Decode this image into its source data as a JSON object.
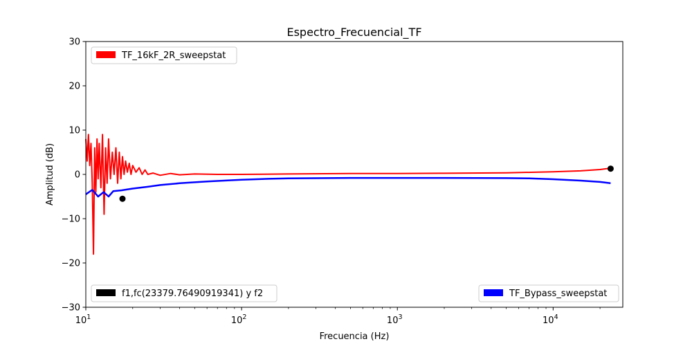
{
  "chart_data": {
    "type": "line",
    "title": "Espectro_Frecuencial_TF",
    "xlabel": "Frecuencia (Hz)",
    "ylabel": "Amplitud (dB)",
    "xscale": "log",
    "xlim": [
      10,
      28000
    ],
    "ylim": [
      -30,
      30
    ],
    "xticks": [
      {
        "value": 10,
        "base": "10",
        "exp": "1"
      },
      {
        "value": 100,
        "base": "10",
        "exp": "2"
      },
      {
        "value": 1000,
        "base": "10",
        "exp": "3"
      },
      {
        "value": 10000,
        "base": "10",
        "exp": "4"
      }
    ],
    "yticks": [
      {
        "value": 30,
        "label": "30"
      },
      {
        "value": 20,
        "label": "20"
      },
      {
        "value": 10,
        "label": "10"
      },
      {
        "value": 0,
        "label": "0"
      },
      {
        "value": -10,
        "label": "−10"
      },
      {
        "value": -20,
        "label": "−20"
      },
      {
        "value": -30,
        "label": "−30"
      }
    ],
    "grid": false,
    "series": [
      {
        "name": "TF_16kF_2R_sweepstat",
        "color": "#ff0000",
        "x": [
          10,
          10.2,
          10.4,
          10.6,
          10.8,
          11,
          11.2,
          11.4,
          11.6,
          11.8,
          12,
          12.2,
          12.5,
          12.8,
          13.1,
          13.4,
          13.7,
          14,
          14.4,
          14.8,
          15.2,
          15.6,
          16,
          16.4,
          16.8,
          17.2,
          17.6,
          18,
          18.5,
          19,
          19.5,
          20,
          21,
          22,
          23,
          24,
          25,
          27,
          30,
          35,
          40,
          50,
          70,
          100,
          200,
          500,
          1000,
          2000,
          5000,
          10000,
          15000,
          20000,
          23380
        ],
        "y": [
          8,
          3,
          9,
          2,
          7,
          -2,
          -18,
          6,
          -4,
          8,
          -1,
          7,
          -3,
          9,
          -9,
          6,
          -2,
          8,
          -1,
          5,
          0,
          6,
          -2,
          5,
          -1,
          4,
          0,
          3,
          0.5,
          2.5,
          0,
          2,
          0.5,
          1.5,
          0,
          1,
          0,
          0.3,
          -0.2,
          0.2,
          -0.1,
          0.1,
          0,
          0,
          0.1,
          0.2,
          0.2,
          0.25,
          0.35,
          0.6,
          0.8,
          1.1,
          1.4
        ]
      },
      {
        "name": "TF_Bypass_sweepstat",
        "color": "#0000ff",
        "x": [
          10,
          11,
          12,
          13,
          14,
          15,
          17,
          20,
          25,
          30,
          40,
          60,
          100,
          150,
          200,
          500,
          1000,
          2000,
          5000,
          7000,
          10000,
          15000,
          20000,
          23380
        ],
        "y": [
          -4.5,
          -3.5,
          -5,
          -4,
          -5,
          -3.8,
          -3.6,
          -3.2,
          -2.8,
          -2.4,
          -2,
          -1.6,
          -1.2,
          -1.0,
          -0.9,
          -0.8,
          -0.8,
          -0.8,
          -0.85,
          -0.9,
          -1.1,
          -1.4,
          -1.7,
          -2.0
        ]
      }
    ],
    "markers": {
      "name": "f1,fc(23379.76490919341) y f2",
      "color": "#000000",
      "points": [
        {
          "x": 17.2,
          "y": -5.5
        },
        {
          "x": 23380,
          "y": 1.3
        }
      ]
    },
    "legends": {
      "top_left": "TF_16kF_2R_sweepstat",
      "bottom_left": "f1,fc(23379.76490919341) y f2",
      "bottom_right": "TF_Bypass_sweepstat"
    }
  }
}
